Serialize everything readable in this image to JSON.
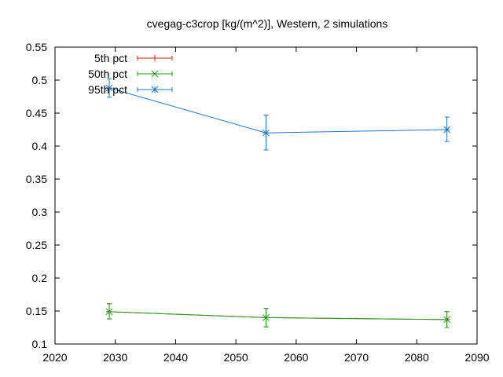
{
  "chart_data": {
    "type": "line",
    "title": "cvegag-c3crop [kg/(m^2)], Western, 2 simulations",
    "xlabel": "",
    "ylabel": "",
    "xlim": [
      2020,
      2090
    ],
    "ylim": [
      0.1,
      0.55
    ],
    "xticks": [
      2020,
      2030,
      2040,
      2050,
      2060,
      2070,
      2080,
      2090
    ],
    "yticks": [
      0.1,
      0.15,
      0.2,
      0.25,
      0.3,
      0.35,
      0.4,
      0.45,
      0.5,
      0.55
    ],
    "ytick_labels": [
      "0.1",
      "0.15",
      "0.2",
      "0.25",
      "0.3",
      "0.35",
      "0.4",
      "0.45",
      "0.5",
      "0.55"
    ],
    "grid": false,
    "legend_position": "top-left",
    "series": [
      {
        "name": "5th pct",
        "color": "#e41a1c",
        "marker": "plus",
        "x": [
          2029,
          2055,
          2085
        ],
        "y": [
          0.149,
          0.14,
          0.137
        ],
        "err_low": [
          0.138,
          0.126,
          0.125
        ],
        "err_high": [
          0.161,
          0.154,
          0.149
        ]
      },
      {
        "name": "50th pct",
        "color": "#1ca01c",
        "marker": "cross",
        "x": [
          2029,
          2055,
          2085
        ],
        "y": [
          0.149,
          0.14,
          0.137
        ],
        "err_low": [
          0.138,
          0.126,
          0.125
        ],
        "err_high": [
          0.161,
          0.154,
          0.149
        ]
      },
      {
        "name": "95th pct",
        "color": "#1f78c8",
        "marker": "star",
        "x": [
          2029,
          2055,
          2085
        ],
        "y": [
          0.488,
          0.42,
          0.425
        ],
        "err_low": [
          0.474,
          0.394,
          0.407
        ],
        "err_high": [
          0.502,
          0.447,
          0.444
        ]
      }
    ]
  }
}
